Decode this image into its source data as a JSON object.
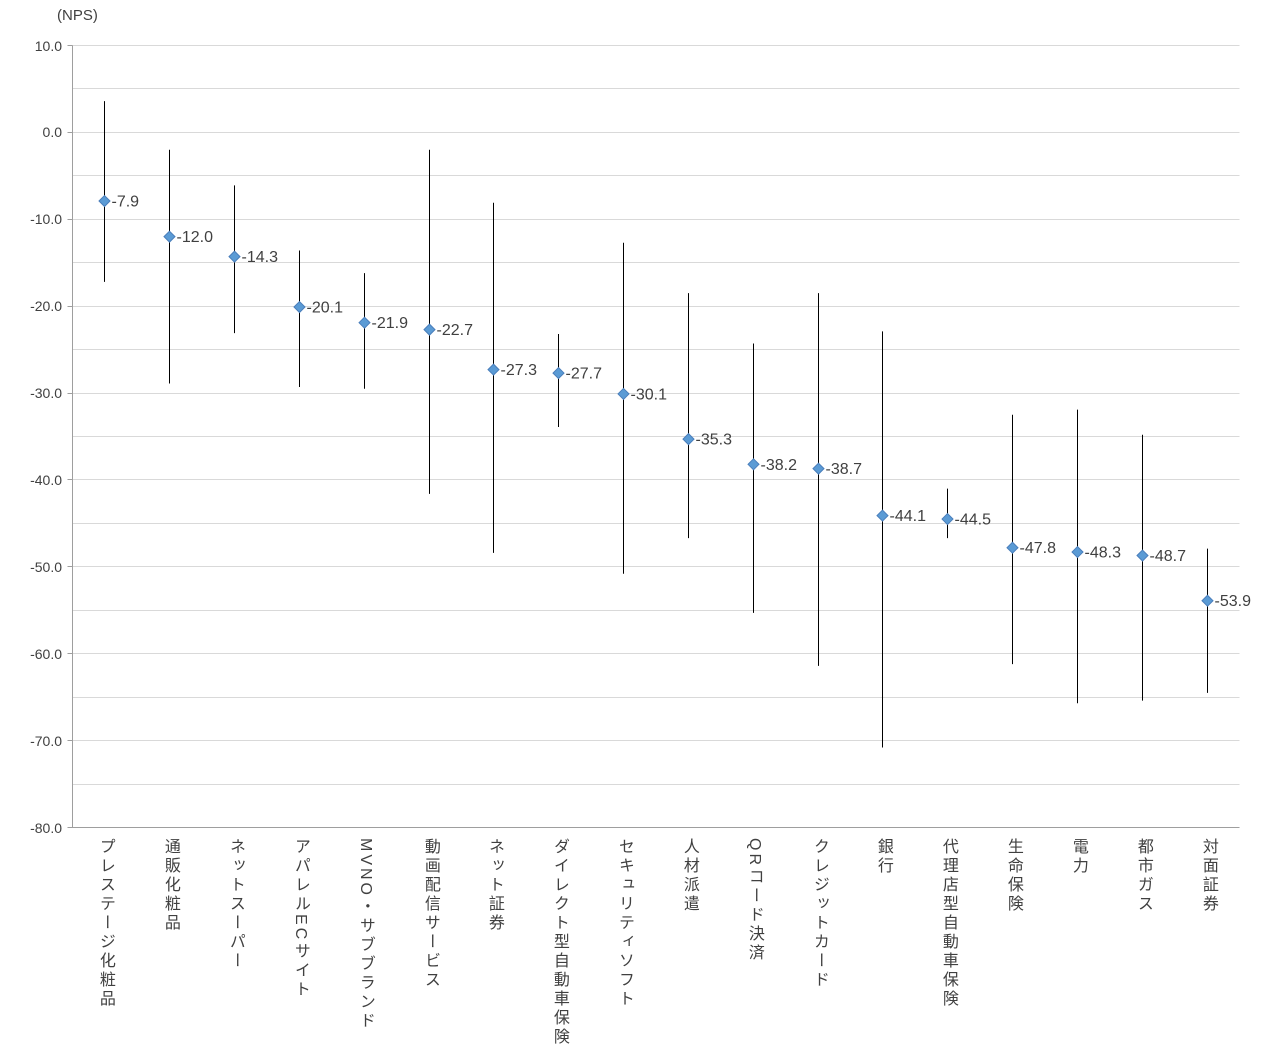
{
  "chart_data": {
    "type": "scatter",
    "subtype": "high-low-range-with-markers",
    "title": "",
    "ylabel": "(NPS)",
    "xlabel": "",
    "ylim": [
      -80,
      10
    ],
    "grid": true,
    "grid_step": 5,
    "tick_step": 10,
    "legend_position": "none",
    "y_tick_labels": [
      "10.0",
      "0.0",
      "-10.0",
      "-20.0",
      "-30.0",
      "-40.0",
      "-50.0",
      "-60.0",
      "-70.0",
      "-80.0"
    ],
    "colors": {
      "marker": "#5B9BD5",
      "marker_edge": "#4A7EBB",
      "range_line": "#000000",
      "grid": "#D9D9D9",
      "axis": "#9E9E9E",
      "text": "#404040"
    },
    "points": [
      {
        "category": "プレステージ化粧品",
        "value": -7.9,
        "label": "-7.9",
        "high": 3.6,
        "low": -17.2
      },
      {
        "category": "通販化粧品",
        "value": -12.0,
        "label": "-12.0",
        "high": -2.0,
        "low": -28.9
      },
      {
        "category": "ネットスーパー",
        "value": -14.3,
        "label": "-14.3",
        "high": -6.1,
        "low": -23.1
      },
      {
        "category": "アパレルECサイト",
        "value": -20.1,
        "label": "-20.1",
        "high": -13.6,
        "low": -29.3
      },
      {
        "category": "MVNO・サブブランド",
        "value": -21.9,
        "label": "-21.9",
        "high": -16.2,
        "low": -29.5
      },
      {
        "category": "動画配信サービス",
        "value": -22.7,
        "label": "-22.7",
        "high": -2.0,
        "low": -41.6
      },
      {
        "category": "ネット証券",
        "value": -27.3,
        "label": "-27.3",
        "high": -8.1,
        "low": -48.4
      },
      {
        "category": "ダイレクト型自動車保険",
        "value": -27.7,
        "label": "-27.7",
        "high": -23.2,
        "low": -33.9
      },
      {
        "category": "セキュリティソフト",
        "value": -30.1,
        "label": "-30.1",
        "high": -12.7,
        "low": -50.8
      },
      {
        "category": "人材派遣",
        "value": -35.3,
        "label": "-35.3",
        "high": -18.5,
        "low": -46.7
      },
      {
        "category": "QRコード決済",
        "value": -38.2,
        "label": "-38.2",
        "high": -24.3,
        "low": -55.3
      },
      {
        "category": "クレジットカード",
        "value": -38.7,
        "label": "-38.7",
        "high": -18.5,
        "low": -61.4
      },
      {
        "category": "銀行",
        "value": -44.1,
        "label": "-44.1",
        "high": -22.9,
        "low": -70.8
      },
      {
        "category": "代理店型自動車保険",
        "value": -44.5,
        "label": "-44.5",
        "high": -41.0,
        "low": -46.7
      },
      {
        "category": "生命保険",
        "value": -47.8,
        "label": "-47.8",
        "high": -32.5,
        "low": -61.2
      },
      {
        "category": "電力",
        "value": -48.3,
        "label": "-48.3",
        "high": -31.9,
        "low": -65.7
      },
      {
        "category": "都市ガス",
        "value": -48.7,
        "label": "-48.7",
        "high": -34.8,
        "low": -65.4
      },
      {
        "category": "対面証券",
        "value": -53.9,
        "label": "-53.9",
        "high": -47.9,
        "low": -64.5
      }
    ]
  }
}
